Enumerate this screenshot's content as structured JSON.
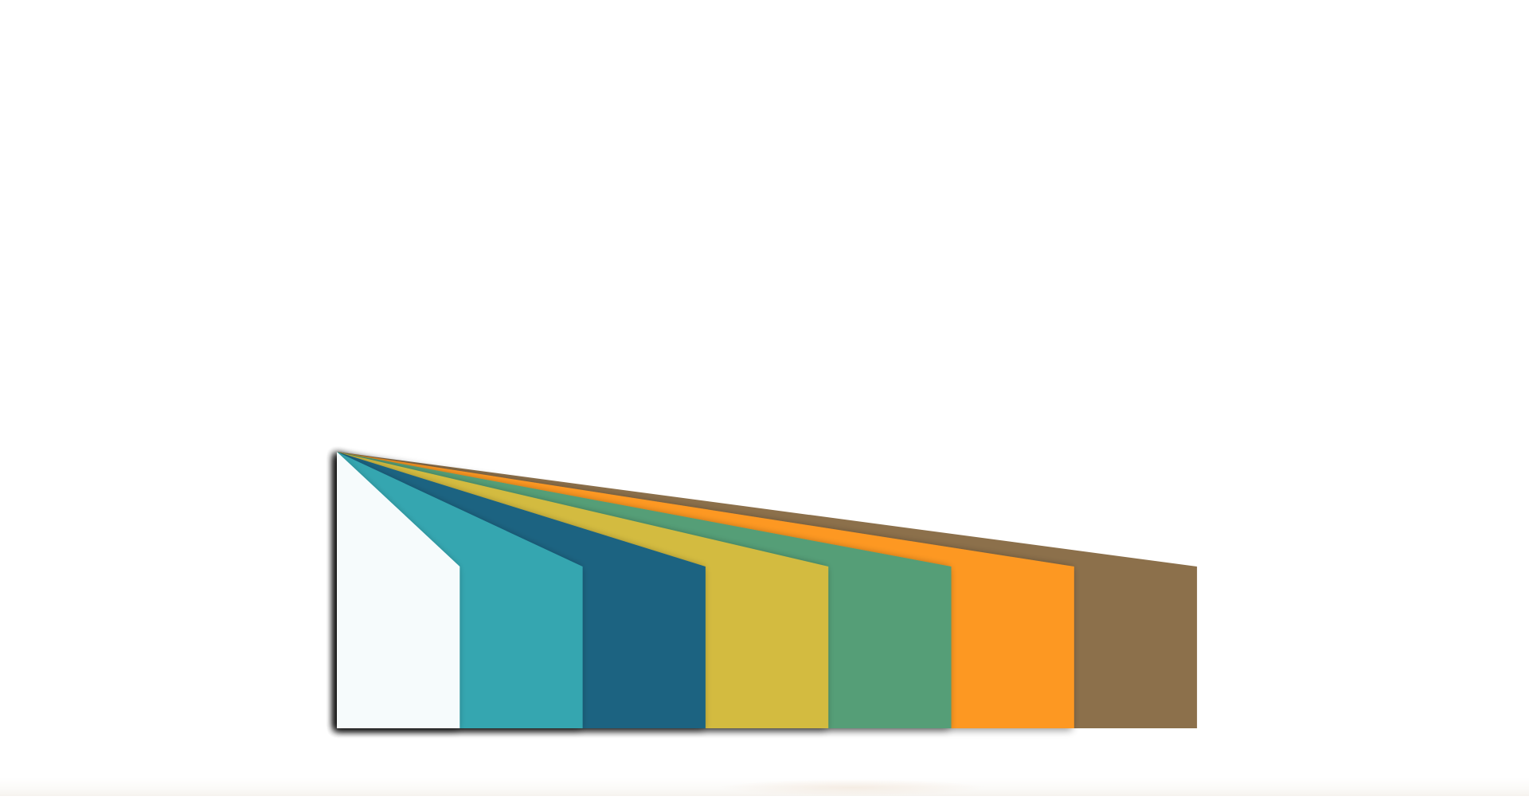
{
  "diagram": {
    "type": "fanned-panels",
    "panels": [
      {
        "color": "#f6fbfc"
      },
      {
        "color": "#35a6b0"
      },
      {
        "color": "#1c6381"
      },
      {
        "color": "#d3bb3f"
      },
      {
        "color": "#549e77"
      },
      {
        "color": "#fd9823"
      },
      {
        "color": "#8c704b"
      }
    ]
  }
}
